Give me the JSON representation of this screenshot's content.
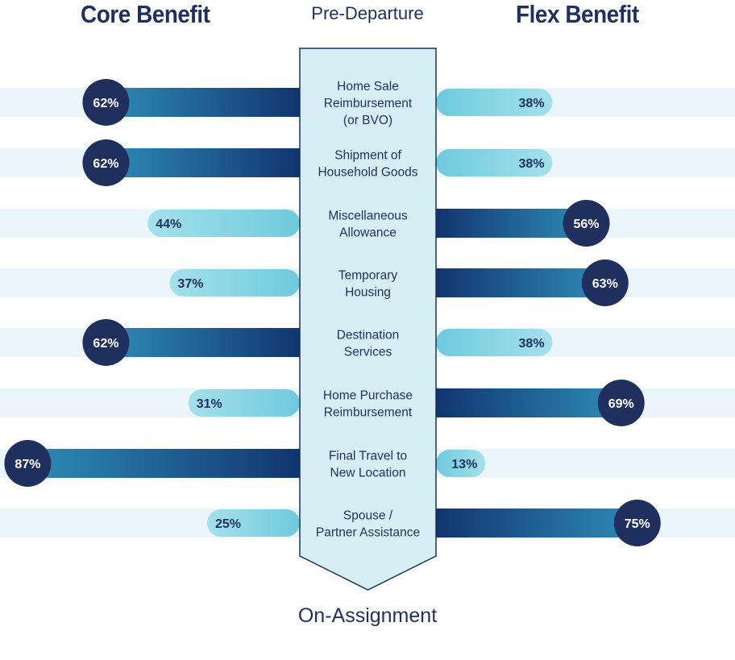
{
  "titles": {
    "core": "Core Benefit",
    "flex": "Flex Benefit",
    "top_stage": "Pre-Departure",
    "bottom_stage": "On-Assignment"
  },
  "colors": {
    "navy": "#1f2f5e",
    "dark_blue": "#11356f",
    "mid_blue": "#2e8cb6",
    "light_blue": "#6ecadc",
    "pale_band": "#eaf6f9",
    "arrow_fill": "#d6eff5"
  },
  "chart_data": {
    "type": "bar",
    "orientation": "diverging-horizontal",
    "categories": [
      "Home Sale\nReimbursement\n(or BVO)",
      "Shipment of\nHousehold Goods",
      "Miscellaneous\nAllowance",
      "Temporary\nHousing",
      "Destination\nServices",
      "Home Purchase\nReimbursement",
      "Final Travel to\nNew Location",
      "Spouse /\nPartner Assistance"
    ],
    "series": [
      {
        "name": "Core Benefit",
        "side": "left",
        "values": [
          62,
          62,
          44,
          37,
          62,
          31,
          87,
          25
        ]
      },
      {
        "name": "Flex Benefit",
        "side": "right",
        "values": [
          38,
          38,
          56,
          63,
          38,
          69,
          13,
          75
        ]
      }
    ],
    "value_labels": {
      "core": [
        "62%",
        "62%",
        "44%",
        "37%",
        "62%",
        "31%",
        "87%",
        "25%"
      ],
      "flex": [
        "38%",
        "38%",
        "56%",
        "63%",
        "38%",
        "69%",
        "13%",
        "75%"
      ]
    },
    "unit": "%",
    "xlim": [
      0,
      100
    ]
  }
}
